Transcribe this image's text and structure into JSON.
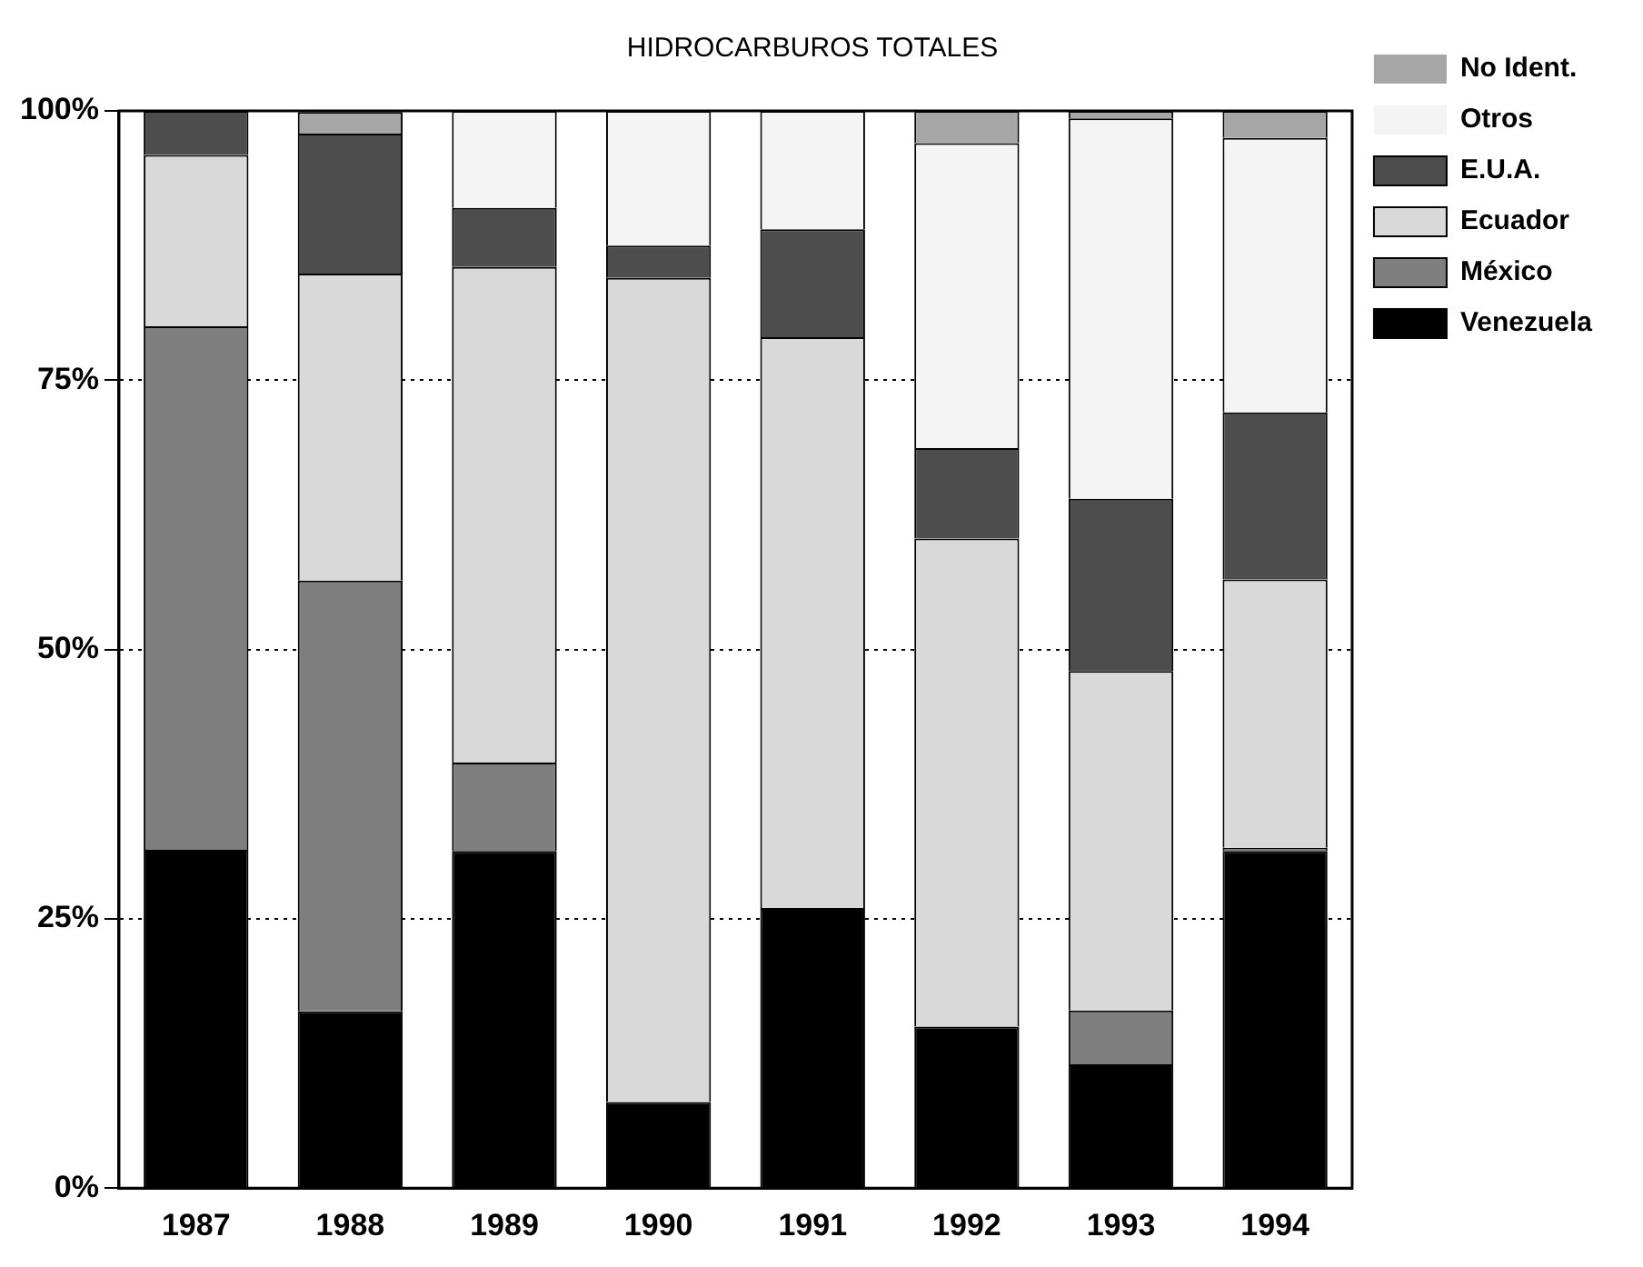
{
  "chart_data": {
    "type": "bar",
    "title": "HIDROCARBUROS TOTALES",
    "stacked": true,
    "categories": [
      "1987",
      "1988",
      "1989",
      "1990",
      "1991",
      "1992",
      "1993",
      "1994"
    ],
    "series": [
      {
        "name": "Venezuela",
        "color": "#000000",
        "values": [
          31.4,
          16.4,
          31.3,
          8,
          26,
          15,
          11.5,
          31.3
        ]
      },
      {
        "name": "México",
        "color": "#7f7f7f",
        "values": [
          48.6,
          40,
          8.2,
          0,
          0,
          0,
          5,
          0.3
        ]
      },
      {
        "name": "Ecuador",
        "color": "#d9d9d9",
        "values": [
          15.9,
          28.5,
          46,
          76.5,
          53,
          45.3,
          31.5,
          24.9
        ]
      },
      {
        "name": "E.U.A.",
        "color": "#4d4d4d",
        "values": [
          4.1,
          13,
          5.5,
          3,
          10,
          8.4,
          16,
          15.5
        ]
      },
      {
        "name": "Otros",
        "color": "#f4f4f4",
        "values": [
          0,
          0,
          9,
          12.5,
          11,
          28.3,
          35.3,
          25.5
        ]
      },
      {
        "name": "No Ident.",
        "color": "#a6a6a6",
        "values": [
          0,
          2,
          0,
          0,
          0,
          3,
          0.7,
          2.5
        ]
      }
    ],
    "ylim": [
      0,
      100
    ],
    "yticks": [
      {
        "value": 0,
        "label": "0%"
      },
      {
        "value": 25,
        "label": "25%"
      },
      {
        "value": 50,
        "label": "50%"
      },
      {
        "value": 75,
        "label": "75%"
      },
      {
        "value": 100,
        "label": "100%"
      }
    ],
    "grid": "y",
    "legend": "right"
  }
}
